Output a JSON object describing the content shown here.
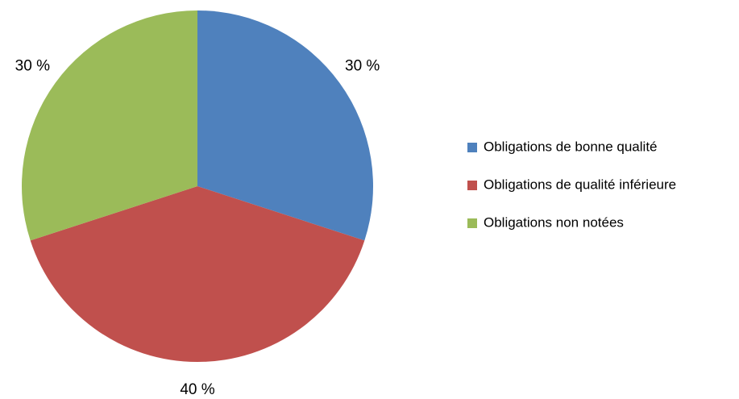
{
  "chart_data": {
    "type": "pie",
    "categories": [
      "Obligations de bonne qualité",
      "Obligations de qualité inférieure",
      "Obligations non notées"
    ],
    "values": [
      30,
      40,
      30
    ],
    "value_labels": [
      "30 %",
      "40 %",
      "30 %"
    ],
    "colors": [
      "#4f81bd",
      "#c0504d",
      "#9bbb59"
    ],
    "legend": "right"
  }
}
